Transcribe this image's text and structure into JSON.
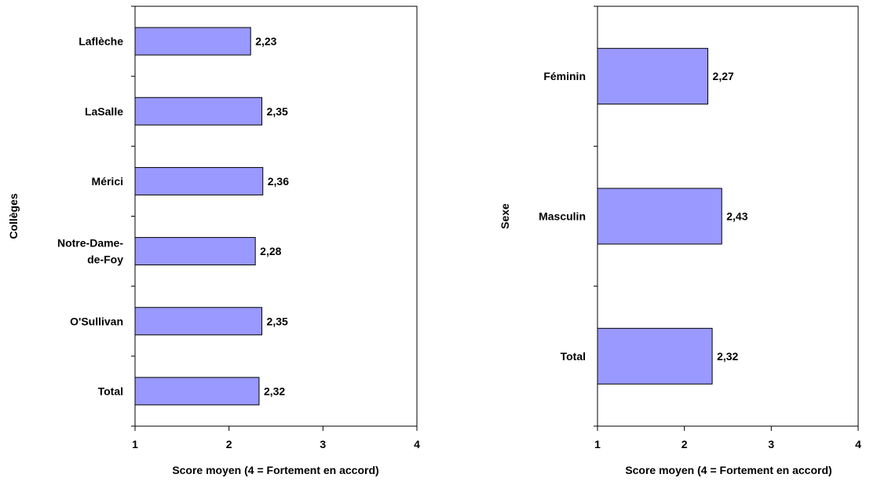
{
  "colors": {
    "bar_fill": "#9999ff",
    "bar_stroke": "#000000",
    "background": "#ffffff"
  },
  "chart_data": [
    {
      "type": "bar",
      "orientation": "horizontal",
      "categories": [
        "Laflèche",
        "LaSalle",
        "Mérici",
        "Notre-Dame-de-Foy",
        "O'Sullivan",
        "Total"
      ],
      "category_lines": [
        [
          "Laflèche"
        ],
        [
          "LaSalle"
        ],
        [
          "Mérici"
        ],
        [
          "Notre-Dame-",
          "de-Foy"
        ],
        [
          "O'Sullivan"
        ],
        [
          "Total"
        ]
      ],
      "values": [
        2.23,
        2.35,
        2.36,
        2.28,
        2.35,
        2.32
      ],
      "value_labels": [
        "2,23",
        "2,35",
        "2,36",
        "2,28",
        "2,35",
        "2,32"
      ],
      "xlabel": "Score moyen (4 = Fortement en accord)",
      "ylabel": "Collèges",
      "xlim": [
        1,
        4
      ],
      "xticks": [
        "1",
        "2",
        "3",
        "4"
      ],
      "grid": false,
      "legend": "none"
    },
    {
      "type": "bar",
      "orientation": "horizontal",
      "categories": [
        "Féminin",
        "Masculin",
        "Total"
      ],
      "category_lines": [
        [
          "Féminin"
        ],
        [
          "Masculin"
        ],
        [
          "Total"
        ]
      ],
      "values": [
        2.27,
        2.43,
        2.32
      ],
      "value_labels": [
        "2,27",
        "2,43",
        "2,32"
      ],
      "xlabel": "Score moyen (4 = Fortement en accord)",
      "ylabel": "Sexe",
      "xlim": [
        1,
        4
      ],
      "xticks": [
        "1",
        "2",
        "3",
        "4"
      ],
      "grid": false,
      "legend": "none"
    }
  ]
}
